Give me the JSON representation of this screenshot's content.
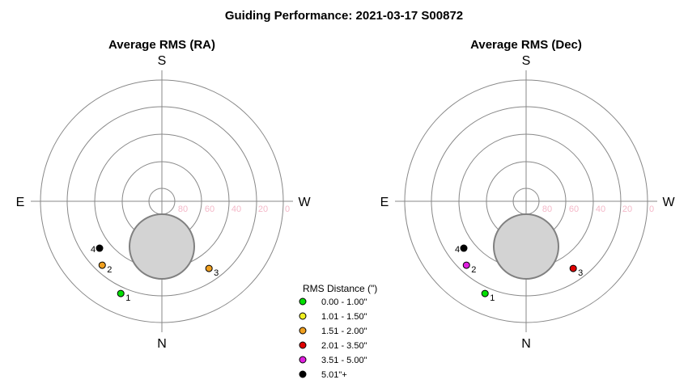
{
  "title": "Guiding Performance: 2021-03-17 S00872",
  "chart_data": [
    {
      "type": "scatter",
      "projection": "polar-sky",
      "title": "Average RMS (RA)",
      "directions": {
        "top": "S",
        "bottom": "N",
        "left": "E",
        "right": "W"
      },
      "altitude_ticks": [
        "80",
        "60",
        "40",
        "20",
        "0"
      ],
      "points": [
        {
          "label": "1",
          "az": 246,
          "alt": 15,
          "color": "#00e000"
        },
        {
          "label": "2",
          "az": 227,
          "alt": 25,
          "color": "#f0a020"
        },
        {
          "label": "3",
          "az": 305,
          "alt": 29,
          "color": "#f0a020"
        },
        {
          "label": "4",
          "az": 217,
          "alt": 32,
          "color": "#000000"
        }
      ]
    },
    {
      "type": "scatter",
      "projection": "polar-sky",
      "title": "Average RMS (Dec)",
      "directions": {
        "top": "S",
        "bottom": "N",
        "left": "E",
        "right": "W"
      },
      "altitude_ticks": [
        "80",
        "60",
        "40",
        "20",
        "0"
      ],
      "points": [
        {
          "label": "1",
          "az": 246,
          "alt": 15,
          "color": "#00e000"
        },
        {
          "label": "2",
          "az": 227,
          "alt": 25,
          "color": "#e020e0"
        },
        {
          "label": "3",
          "az": 305,
          "alt": 29,
          "color": "#e00000"
        },
        {
          "label": "4",
          "az": 217,
          "alt": 32,
          "color": "#000000"
        }
      ]
    }
  ],
  "legend": {
    "title": "RMS Distance (\")",
    "items": [
      {
        "label": "0.00 - 1.00\"",
        "color": "#00e000"
      },
      {
        "label": "1.01 - 1.50\"",
        "color": "#f0f020"
      },
      {
        "label": "1.51 - 2.00\"",
        "color": "#f0a020"
      },
      {
        "label": "2.01 - 3.50\"",
        "color": "#e00000"
      },
      {
        "label": "3.51 - 5.00\"",
        "color": "#e020e0"
      },
      {
        "label": "5.01\"+",
        "color": "#000000"
      }
    ]
  }
}
